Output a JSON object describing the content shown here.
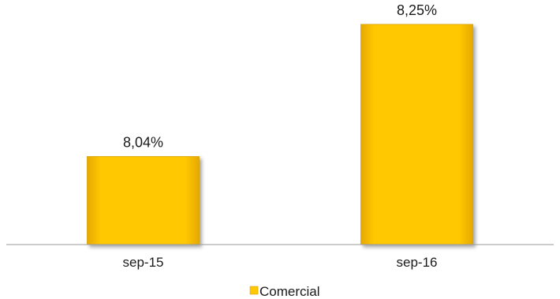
{
  "chart_data": {
    "type": "bar",
    "categories": [
      "sep-15",
      "sep-16"
    ],
    "series": [
      {
        "name": "Comercial",
        "values": [
          8.04,
          8.25
        ],
        "labels": [
          "8,04%",
          "8,25%"
        ],
        "color": "#FFC800"
      }
    ],
    "title": "",
    "xlabel": "",
    "ylabel": "",
    "ylim": [
      7.9,
      8.27
    ],
    "grid": false,
    "legend": "bottom-center"
  }
}
